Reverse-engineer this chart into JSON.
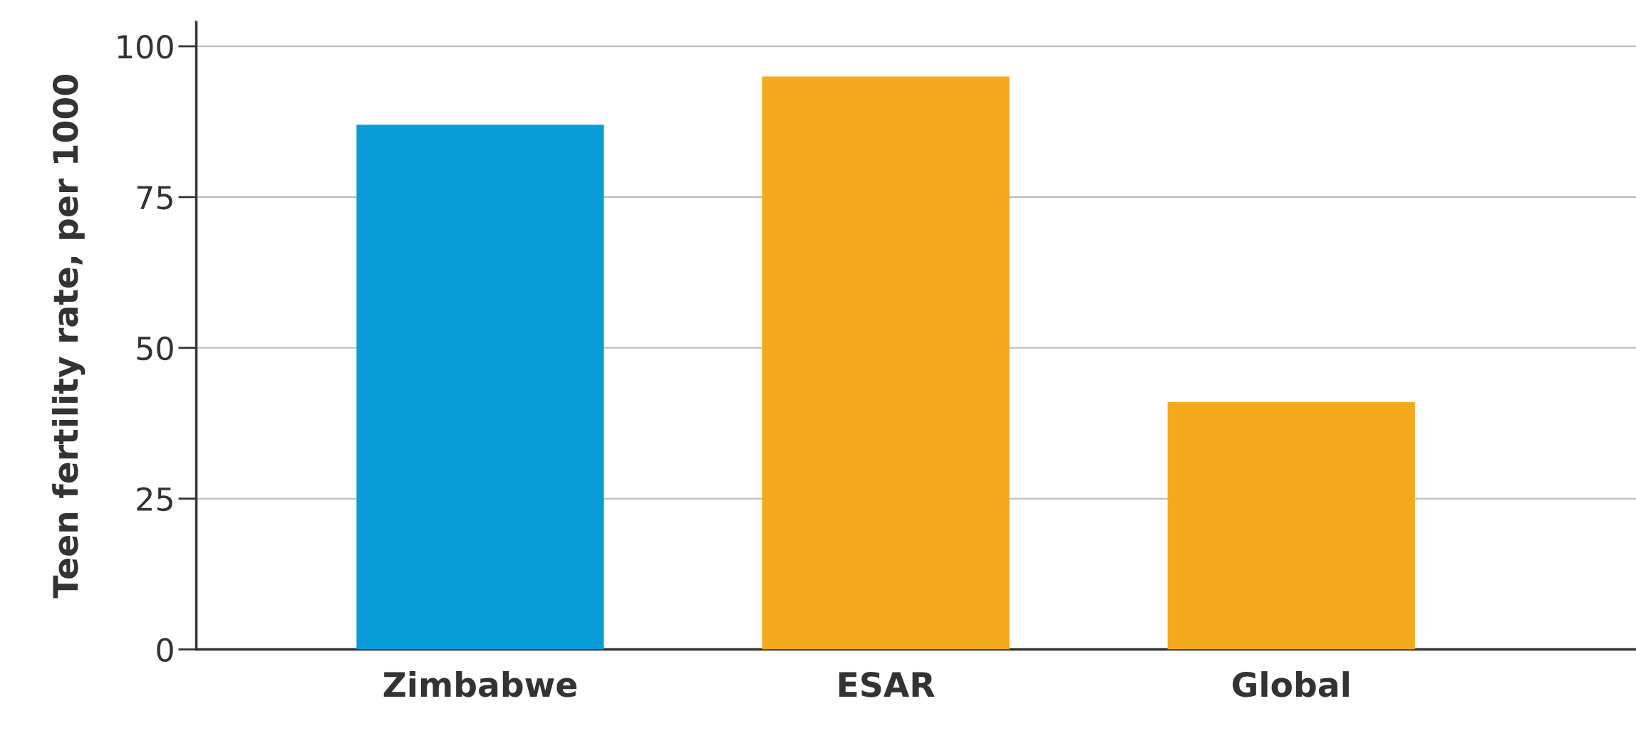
{
  "chart_data": {
    "type": "bar",
    "ylabel": "Teen fertility rate, per 1000",
    "categories": [
      "Zimbabwe",
      "ESAR",
      "Global"
    ],
    "values": [
      87,
      95,
      41
    ],
    "colors": [
      "#089dd9",
      "#f5a91c",
      "#f5a91c"
    ],
    "ylim": [
      0,
      104
    ],
    "yticks": [
      0,
      25,
      50,
      75,
      100
    ],
    "grid": "y"
  }
}
